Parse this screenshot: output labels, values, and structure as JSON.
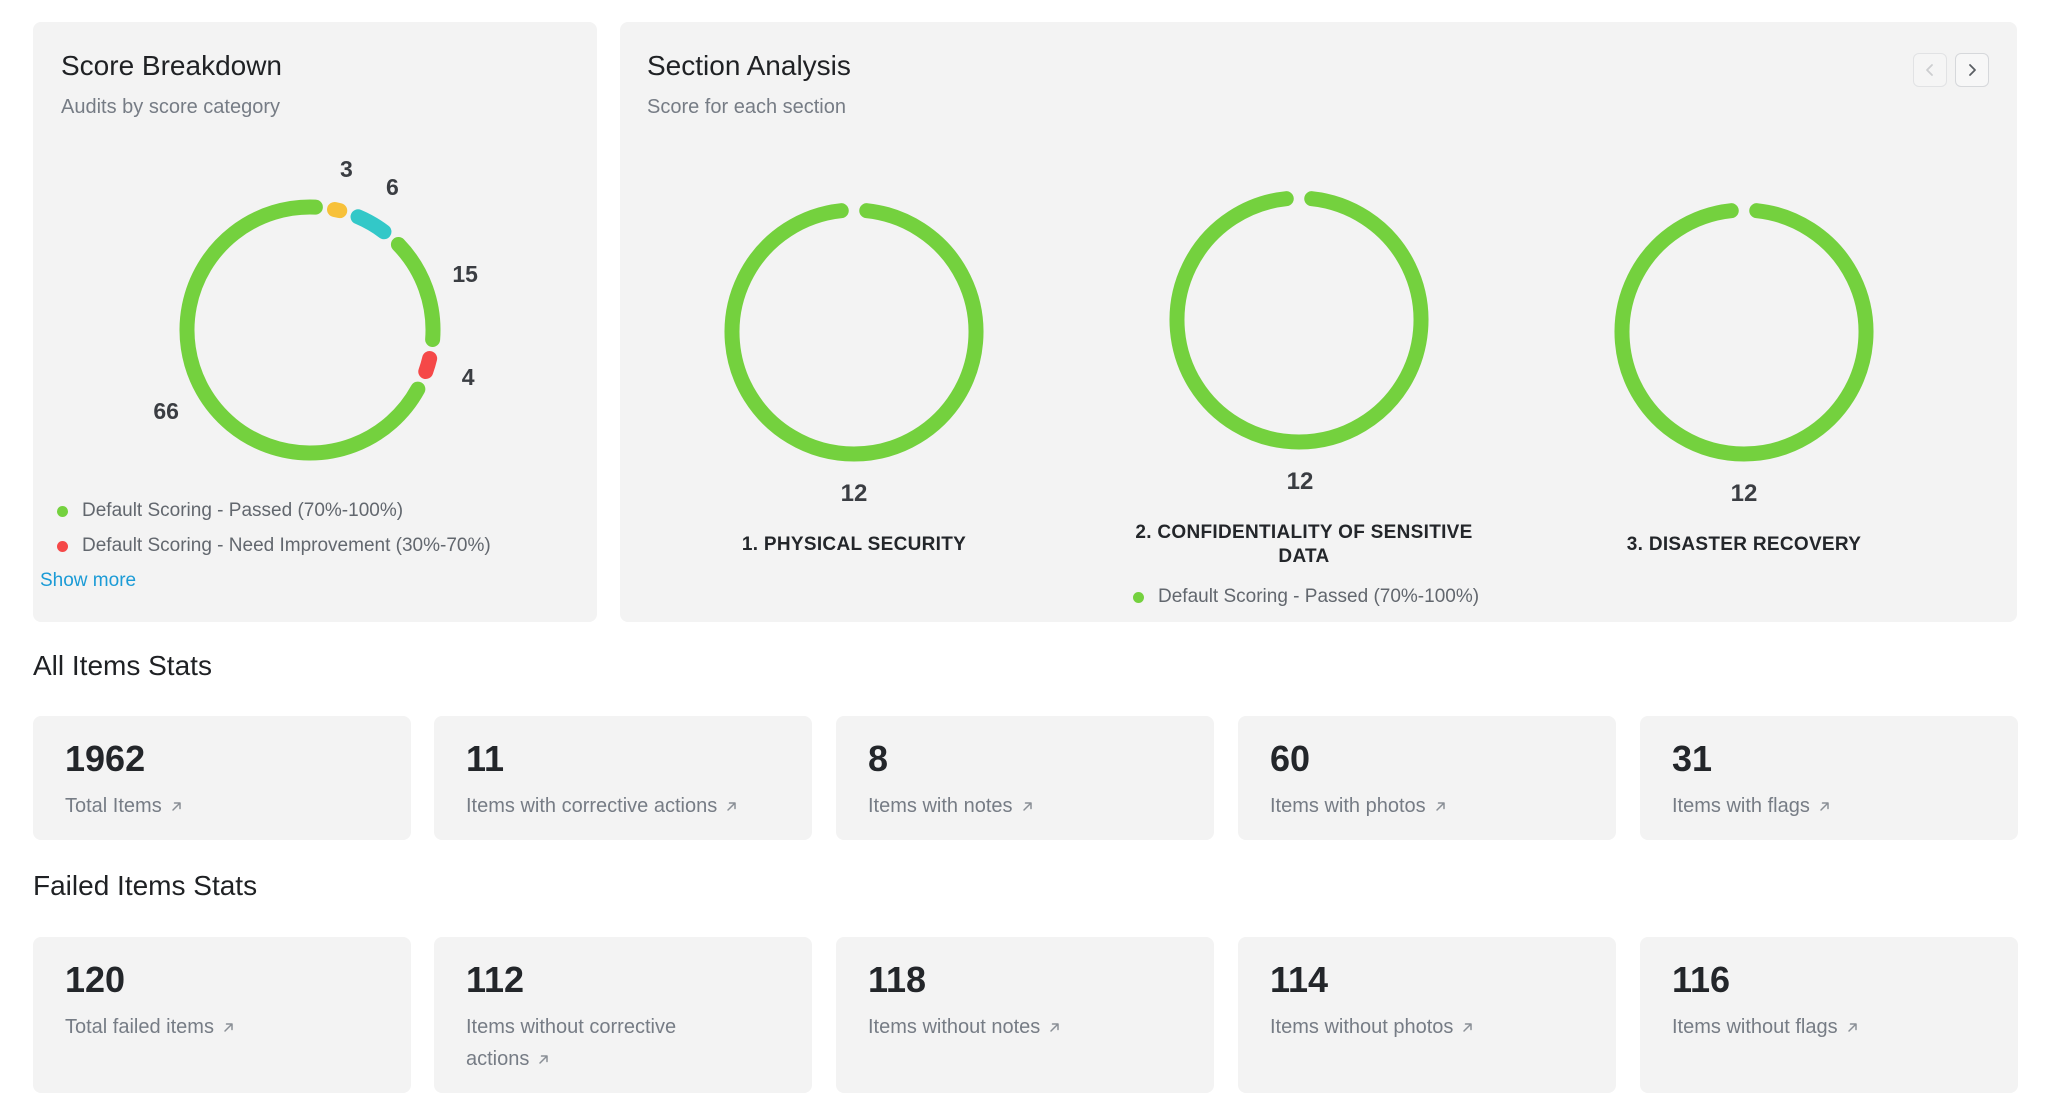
{
  "score_breakdown": {
    "title": "Score Breakdown",
    "subtitle": "Audits by score category",
    "segments": [
      {
        "value": 3,
        "label": "3",
        "color": "#f7c13a"
      },
      {
        "value": 6,
        "label": "6",
        "color": "#33c8c8"
      },
      {
        "value": 15,
        "label": "15",
        "color": "#74d13e"
      },
      {
        "value": 4,
        "label": "4",
        "color": "#f54848"
      },
      {
        "value": 66,
        "label": "66",
        "color": "#74d13e"
      }
    ],
    "legend": [
      {
        "label": "Default Scoring - Passed (70%-100%)",
        "color": "#74d13e"
      },
      {
        "label": "Default Scoring - Need Improvement (30%-70%)",
        "color": "#f54848"
      }
    ],
    "show_more": "Show more"
  },
  "section_analysis": {
    "title": "Section Analysis",
    "subtitle": "Score for each section",
    "prev_icon": "chevron-left-icon",
    "next_icon": "chevron-right-icon",
    "sections": [
      {
        "count": "12",
        "label": "1. PHYSICAL SECURITY"
      },
      {
        "count": "12",
        "label": "2. CONFIDENTIALITY OF SENSITIVE DATA"
      },
      {
        "count": "12",
        "label": "3. DISASTER RECOVERY"
      }
    ],
    "legend": {
      "label": "Default Scoring - Passed (70%-100%)",
      "color": "#74d13e"
    }
  },
  "all_items": {
    "heading": "All Items Stats",
    "cards": [
      {
        "value": "1962",
        "label": "Total Items"
      },
      {
        "value": "11",
        "label": "Items with corrective actions"
      },
      {
        "value": "8",
        "label": "Items with notes"
      },
      {
        "value": "60",
        "label": "Items with photos"
      },
      {
        "value": "31",
        "label": "Items with flags"
      }
    ]
  },
  "failed_items": {
    "heading": "Failed Items Stats",
    "cards": [
      {
        "value": "120",
        "label": "Total failed items"
      },
      {
        "value": "112",
        "label": "Items without corrective actions"
      },
      {
        "value": "118",
        "label": "Items without notes"
      },
      {
        "value": "114",
        "label": "Items without photos"
      },
      {
        "value": "116",
        "label": "Items without flags"
      }
    ]
  },
  "colors": {
    "passed_green": "#74d13e",
    "need_improvement_red": "#f54848",
    "link_blue": "#1b9bd6"
  }
}
